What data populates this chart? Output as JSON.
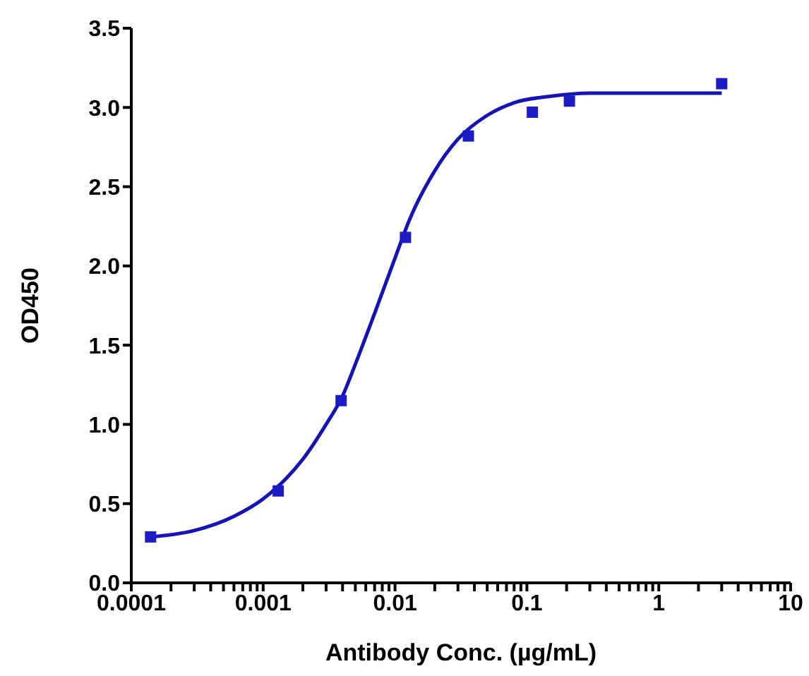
{
  "chart_data": {
    "type": "scatter",
    "xlabel": "Antibody Conc. (µg/mL)",
    "ylabel": "OD450",
    "log": "x",
    "grid": false,
    "xlim": [
      0.0001,
      10
    ],
    "ylim": [
      0,
      3.5
    ],
    "xticks": [
      {
        "value": 0.0001,
        "label": "0.0001"
      },
      {
        "value": 0.0002,
        "label": null
      },
      {
        "value": 0.0003,
        "label": null
      },
      {
        "value": 0.0004,
        "label": null
      },
      {
        "value": 0.0005,
        "label": null
      },
      {
        "value": 0.0006,
        "label": null
      },
      {
        "value": 0.0007,
        "label": null
      },
      {
        "value": 0.0008,
        "label": null
      },
      {
        "value": 0.0009,
        "label": null
      },
      {
        "value": 0.001,
        "label": "0.001"
      },
      {
        "value": 0.002,
        "label": null
      },
      {
        "value": 0.003,
        "label": null
      },
      {
        "value": 0.004,
        "label": null
      },
      {
        "value": 0.005,
        "label": null
      },
      {
        "value": 0.006,
        "label": null
      },
      {
        "value": 0.007,
        "label": null
      },
      {
        "value": 0.008,
        "label": null
      },
      {
        "value": 0.009,
        "label": null
      },
      {
        "value": 0.01,
        "label": "0.01"
      },
      {
        "value": 0.02,
        "label": null
      },
      {
        "value": 0.03,
        "label": null
      },
      {
        "value": 0.04,
        "label": null
      },
      {
        "value": 0.05,
        "label": null
      },
      {
        "value": 0.06,
        "label": null
      },
      {
        "value": 0.07,
        "label": null
      },
      {
        "value": 0.08,
        "label": null
      },
      {
        "value": 0.09,
        "label": null
      },
      {
        "value": 0.1,
        "label": "0.1"
      },
      {
        "value": 0.2,
        "label": null
      },
      {
        "value": 0.3,
        "label": null
      },
      {
        "value": 0.4,
        "label": null
      },
      {
        "value": 0.5,
        "label": null
      },
      {
        "value": 0.6,
        "label": null
      },
      {
        "value": 0.7,
        "label": null
      },
      {
        "value": 0.8,
        "label": null
      },
      {
        "value": 0.9,
        "label": null
      },
      {
        "value": 1,
        "label": "1"
      },
      {
        "value": 2,
        "label": null
      },
      {
        "value": 3,
        "label": null
      },
      {
        "value": 4,
        "label": null
      },
      {
        "value": 5,
        "label": null
      },
      {
        "value": 6,
        "label": null
      },
      {
        "value": 7,
        "label": null
      },
      {
        "value": 8,
        "label": null
      },
      {
        "value": 9,
        "label": null
      },
      {
        "value": 10,
        "label": "10"
      }
    ],
    "yticks": [
      {
        "value": 0,
        "label": "0.0"
      },
      {
        "value": 0.5,
        "label": "0.5"
      },
      {
        "value": 1,
        "label": "1.0"
      },
      {
        "value": 1.5,
        "label": "1.5"
      },
      {
        "value": 2,
        "label": "2.0"
      },
      {
        "value": 2.5,
        "label": "2.5"
      },
      {
        "value": 3,
        "label": "3.0"
      },
      {
        "value": 3.5,
        "label": "3.5"
      }
    ],
    "series": [
      {
        "type": "scatter",
        "marker": "square",
        "color": "#1c1cc4",
        "x": [
          0.00014,
          0.0013,
          0.0039,
          0.012,
          0.036,
          0.11,
          0.21,
          3
        ],
        "values": [
          0.29,
          0.58,
          1.15,
          2.18,
          2.82,
          2.97,
          3.04,
          3.15
        ]
      },
      {
        "type": "line",
        "marker": "none",
        "line_style": "solid",
        "color": "#1414b4",
        "x": [
          0.00014,
          0.0003,
          0.0006,
          0.001,
          0.0015,
          0.002,
          0.003,
          0.004,
          0.005,
          0.007,
          0.01,
          0.013,
          0.02,
          0.03,
          0.05,
          0.08,
          0.15,
          0.3,
          1,
          3
        ],
        "values": [
          0.29,
          0.33,
          0.42,
          0.53,
          0.66,
          0.78,
          1.0,
          1.18,
          1.38,
          1.7,
          2.05,
          2.3,
          2.6,
          2.8,
          2.95,
          3.03,
          3.07,
          3.09,
          3.09,
          3.09
        ]
      }
    ]
  }
}
